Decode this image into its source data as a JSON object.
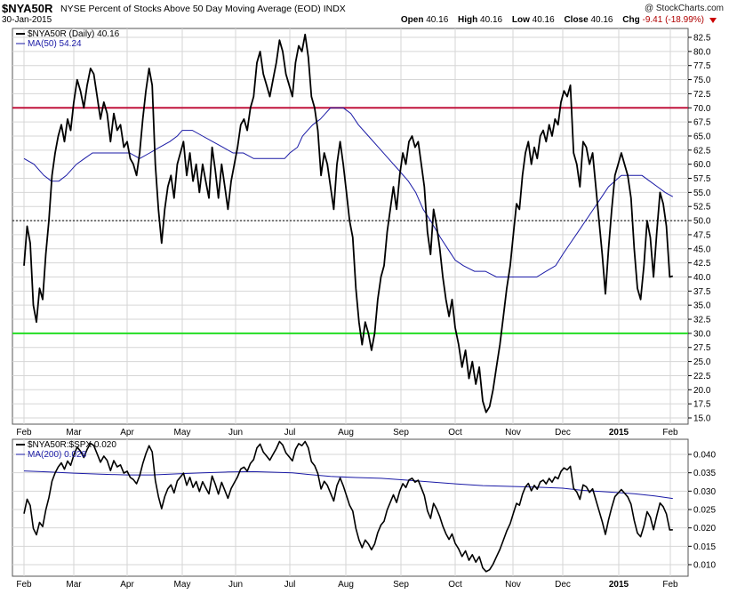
{
  "header": {
    "symbol": "$NYA50R",
    "title": "NYSE Percent of Stocks Above 50 Day Moving Average (EOD)  INDX",
    "copyright": "@ StockCharts.com",
    "date": "30-Jan-2015",
    "open_label": "Open",
    "open": "40.16",
    "high_label": "High",
    "high": "40.16",
    "low_label": "Low",
    "low": "40.16",
    "close_label": "Close",
    "close": "40.16",
    "chg_label": "Chg",
    "chg": "-9.41 (-18.99%)"
  },
  "colors": {
    "price_line": "#000000",
    "ma_line": "#1a1aa6",
    "upper_line": "#c0143c",
    "lower_line": "#22dd22",
    "mid_line": "#000000",
    "grid": "#d6d6d6",
    "frame": "#555555"
  },
  "chart_data": [
    {
      "type": "line",
      "legend": [
        "$NYA50R (Daily) 40.16",
        "MA(50) 54.24"
      ],
      "legend_placement": "top-left",
      "grid": true,
      "ylim": [
        14,
        84
      ],
      "y_ticks": [
        "15.0",
        "17.5",
        "20.0",
        "22.5",
        "25.0",
        "27.5",
        "30.0",
        "32.5",
        "35.0",
        "37.5",
        "40.0",
        "42.5",
        "45.0",
        "47.5",
        "50.0",
        "52.5",
        "55.0",
        "57.5",
        "60.0",
        "62.5",
        "65.0",
        "67.5",
        "70.0",
        "72.5",
        "75.0",
        "77.5",
        "80.0",
        "82.5"
      ],
      "x_ticks": [
        "Feb",
        "Mar",
        "Apr",
        "May",
        "Jun",
        "Jul",
        "Aug",
        "Sep",
        "Oct",
        "Nov",
        "Dec",
        "2015",
        "Feb"
      ],
      "x_tick_positions": [
        0,
        20,
        40,
        62,
        83,
        104,
        126,
        148,
        170,
        191,
        212,
        234,
        254
      ],
      "reference_lines": [
        {
          "value": 70,
          "color": "red"
        },
        {
          "value": 50,
          "style": "dotted"
        },
        {
          "value": 30,
          "color": "green"
        }
      ],
      "series": [
        {
          "name": "$NYA50R (Daily) 40.16",
          "color": "black",
          "values": [
            42,
            49,
            46,
            35,
            32,
            38,
            36,
            44,
            50,
            58,
            62,
            65,
            67,
            64,
            68,
            66,
            71,
            75,
            73,
            70,
            74,
            77,
            76,
            72,
            68,
            71,
            69,
            64,
            69,
            66,
            67,
            63,
            64,
            61,
            60,
            58,
            62,
            68,
            73,
            77,
            74,
            60,
            52,
            46,
            52,
            56,
            58,
            54,
            60,
            62,
            64,
            58,
            62,
            57,
            60,
            55,
            60,
            57,
            54,
            63,
            59,
            54,
            60,
            56,
            52,
            57,
            60,
            63,
            67,
            68,
            66,
            70,
            72,
            78,
            80,
            76,
            74,
            72,
            75,
            78,
            82,
            80,
            76,
            74,
            72,
            78,
            81,
            80,
            83,
            79,
            72,
            70,
            66,
            58,
            62,
            60,
            56,
            52,
            60,
            64,
            60,
            55,
            50,
            47,
            38,
            32,
            28,
            32,
            30,
            27,
            30,
            36,
            40,
            42,
            48,
            52,
            56,
            52,
            58,
            62,
            60,
            64,
            65,
            63,
            64,
            60,
            56,
            48,
            44,
            52,
            49,
            45,
            40,
            36,
            33,
            36,
            31,
            28,
            24,
            27,
            22,
            25,
            21,
            24,
            18,
            16,
            17,
            20,
            24,
            28,
            33,
            38,
            42,
            48,
            53,
            52,
            58,
            62,
            64,
            60,
            63,
            61,
            65,
            66,
            64,
            67,
            65,
            68,
            67,
            71,
            73,
            72,
            74,
            62,
            60,
            56,
            64,
            63,
            60,
            62,
            56,
            50,
            44,
            37,
            45,
            52,
            58,
            60,
            62,
            60,
            58,
            54,
            45,
            38,
            36,
            42,
            50,
            47,
            40,
            48,
            55,
            53,
            49,
            40,
            40.16
          ]
        },
        {
          "name": "MA(50) 54.24",
          "color": "blue",
          "values": [
            61,
            60,
            58,
            57,
            57,
            58,
            60,
            61,
            62,
            62,
            62,
            62,
            62,
            61,
            62,
            63,
            64,
            65,
            66,
            66,
            65,
            64,
            63,
            62,
            62,
            61,
            61,
            61,
            61,
            62,
            63,
            65,
            66,
            67,
            68,
            69,
            70,
            70,
            70,
            69,
            67,
            65,
            63,
            61,
            59,
            57,
            55,
            52,
            50,
            47,
            45,
            43,
            42,
            41,
            41,
            40,
            40,
            40,
            40,
            40,
            41,
            42,
            44,
            46,
            48,
            50,
            52,
            54,
            56,
            58,
            58,
            58,
            57,
            56,
            55,
            54.24
          ],
          "x_positions": [
            0,
            4,
            8,
            11,
            14,
            17,
            21,
            24,
            27,
            30,
            33,
            38,
            41,
            45,
            49,
            53,
            57,
            60,
            62,
            66,
            70,
            74,
            78,
            82,
            86,
            90,
            95,
            99,
            102,
            104,
            107,
            109,
            111,
            113,
            116,
            118,
            120,
            122,
            125,
            128,
            131,
            135,
            139,
            143,
            147,
            151,
            154,
            157,
            160,
            164,
            167,
            170,
            173,
            177,
            181,
            185,
            189,
            193,
            197,
            201,
            205,
            209,
            212,
            215,
            218,
            221,
            224,
            227,
            230,
            235,
            239,
            243,
            246,
            249,
            252,
            255
          ]
        }
      ]
    },
    {
      "type": "line",
      "legend": [
        "$NYA50R:$SPX 0.020",
        "MA(200) 0.028"
      ],
      "legend_placement": "top-left",
      "grid": true,
      "ylim": [
        0.007,
        0.044
      ],
      "y_ticks": [
        "0.010",
        "0.015",
        "0.020",
        "0.025",
        "0.030",
        "0.035",
        "0.040"
      ],
      "x_ticks": [
        "Feb",
        "Mar",
        "Apr",
        "May",
        "Jun",
        "Jul",
        "Aug",
        "Sep",
        "Oct",
        "Nov",
        "Dec",
        "2015",
        "Feb"
      ],
      "series": [
        {
          "name": "$NYA50R:$SPX 0.020",
          "color": "black"
        },
        {
          "name": "MA(200) 0.028",
          "color": "blue",
          "values": [
            0.0355,
            0.0352,
            0.0349,
            0.0346,
            0.0344,
            0.0344,
            0.0347,
            0.035,
            0.0352,
            0.0353,
            0.035,
            0.0345,
            0.034,
            0.0337,
            0.0335,
            0.033,
            0.0325,
            0.032,
            0.0315,
            0.0313,
            0.0311,
            0.0308,
            0.0302,
            0.0298,
            0.0293,
            0.0287,
            0.028
          ],
          "x_positions": [
            0,
            10,
            20,
            30,
            40,
            50,
            60,
            70,
            80,
            90,
            105,
            112,
            120,
            130,
            140,
            150,
            160,
            170,
            180,
            190,
            200,
            212,
            220,
            230,
            240,
            248,
            255
          ]
        }
      ]
    }
  ]
}
